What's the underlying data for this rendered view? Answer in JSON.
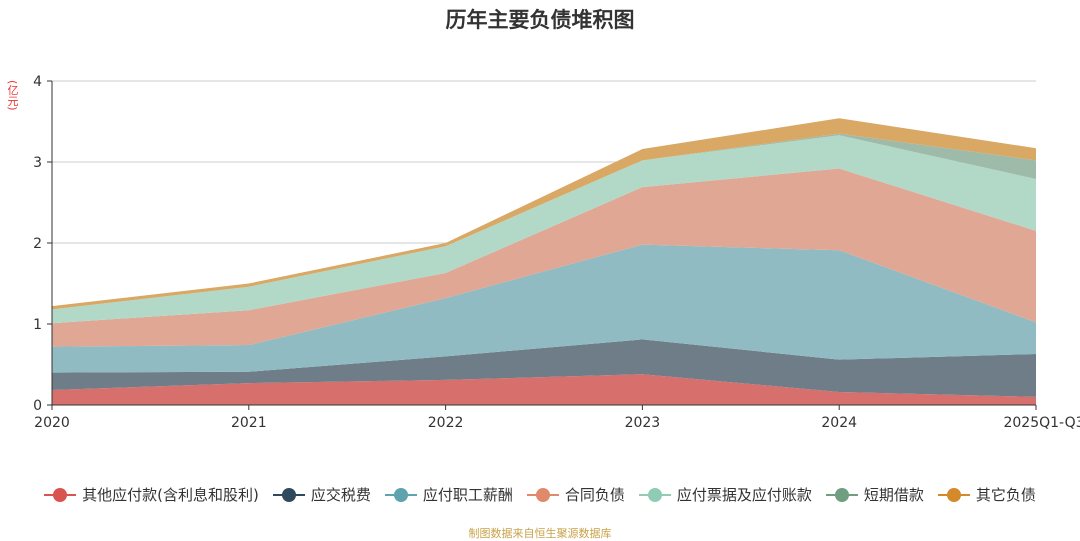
{
  "title": "历年主要负债堆积图",
  "unit_label": "(亿元)",
  "source": "制图数据来自恒生聚源数据库",
  "chart_data": {
    "type": "area",
    "stacked": true,
    "title": "历年主要负债堆积图",
    "xlabel": "",
    "ylabel": "(亿元)",
    "ylim": [
      0,
      4
    ],
    "yticks": [
      0,
      1,
      2,
      3,
      4
    ],
    "grid": true,
    "legend_position": "bottom",
    "categories": [
      "2020",
      "2021",
      "2022",
      "2023",
      "2024",
      "2025Q1-Q3"
    ],
    "series": [
      {
        "name": "其他应付款(含利息和股利)",
        "color": "#d9534f",
        "fill": "#d7706c",
        "values": [
          0.185,
          0.27,
          0.31,
          0.38,
          0.16,
          0.1
        ]
      },
      {
        "name": "应交税费",
        "color": "#2e4a5c",
        "fill": "#6e7d88",
        "values": [
          0.215,
          0.14,
          0.29,
          0.43,
          0.4,
          0.53
        ]
      },
      {
        "name": "应付职工薪酬",
        "color": "#5ea3ad",
        "fill": "#91bbc2",
        "values": [
          0.32,
          0.33,
          0.72,
          1.17,
          1.35,
          0.39
        ]
      },
      {
        "name": "合同负债",
        "color": "#e0896b",
        "fill": "#e0a794",
        "values": [
          0.29,
          0.43,
          0.31,
          0.71,
          1.01,
          1.13
        ]
      },
      {
        "name": "应付票据及应付账款",
        "color": "#90ccb3",
        "fill": "#b2d9c8",
        "values": [
          0.17,
          0.29,
          0.33,
          0.33,
          0.41,
          0.64
        ]
      },
      {
        "name": "短期借款",
        "color": "#6f9e80",
        "fill": "#9dbba8",
        "values": [
          0,
          0,
          0,
          0,
          0.02,
          0.23
        ]
      },
      {
        "name": "其它负债",
        "color": "#d4892b",
        "fill": "#d9a864",
        "values": [
          0.04,
          0.04,
          0.04,
          0.14,
          0.19,
          0.15
        ]
      }
    ]
  }
}
